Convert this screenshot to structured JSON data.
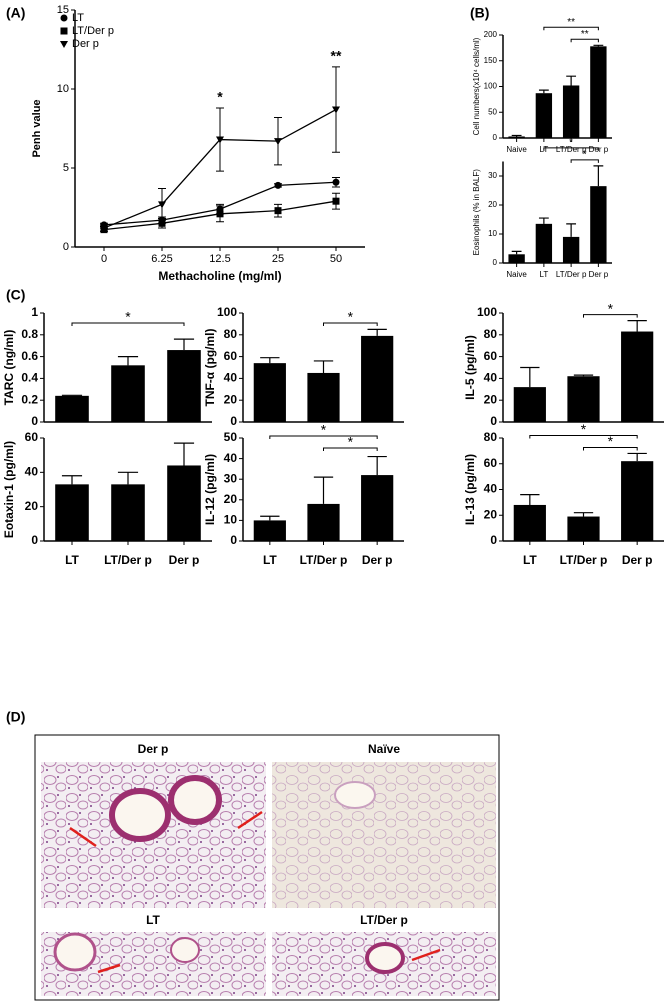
{
  "panel_labels": [
    "(A)",
    "(B)",
    "(C)",
    "(D)"
  ],
  "images": [
    {
      "title": "Der p"
    },
    {
      "title": "Naïve"
    },
    {
      "title": "LT"
    },
    {
      "title": "LT/Der p"
    }
  ],
  "chart_data": [
    {
      "type": "line",
      "x_label": "Methacholine (mg/ml)",
      "y_label": "Penh value",
      "categories": [
        "0",
        "6.25",
        "12.5",
        "25",
        "50"
      ],
      "ylim": [
        0,
        15
      ],
      "yticks": [
        0,
        5,
        10,
        15
      ],
      "series": [
        {
          "name": "LT",
          "color": "#000000",
          "marker": "circle",
          "values": [
            1.4,
            1.7,
            2.4,
            3.9,
            4.1
          ],
          "errors": [
            0.1,
            0.2,
            0.3,
            0.1,
            0.3
          ]
        },
        {
          "name": "LT/Der p",
          "color": "#000000",
          "marker": "square",
          "values": [
            1.1,
            1.5,
            2.1,
            2.3,
            2.9
          ],
          "errors": [
            0.1,
            0.3,
            0.5,
            0.4,
            0.5
          ]
        },
        {
          "name": "Der p",
          "color": "#000000",
          "marker": "triangle-down",
          "values": [
            1.2,
            2.7,
            6.8,
            6.7,
            8.7
          ],
          "errors": [
            0.2,
            1.0,
            2.0,
            1.5,
            2.7
          ]
        }
      ],
      "annotations": [
        {
          "text": "*",
          "x": "12.5"
        },
        {
          "text": "**",
          "x": "50"
        }
      ]
    },
    {
      "type": "bar",
      "y_label": "Cell numbers(x10⁴ cells/ml)",
      "categories": [
        "Naive",
        "LT",
        "LT/Der p",
        "Der p"
      ],
      "values": [
        3,
        87,
        102,
        178
      ],
      "errors": [
        2,
        6,
        18,
        2
      ],
      "color": "#000000",
      "ylim": [
        0,
        200
      ],
      "yticks": [
        0,
        50,
        100,
        150,
        200
      ],
      "brackets": [
        {
          "pair": [
            2,
            3
          ],
          "label": "**"
        },
        {
          "pair": [
            1,
            3
          ],
          "label": "**"
        }
      ]
    },
    {
      "type": "bar",
      "y_label": "Eosinophils (% in BALF)",
      "categories": [
        "Naive",
        "LT",
        "LT/Der p",
        "Der p"
      ],
      "values": [
        3,
        13.5,
        9,
        26.5
      ],
      "errors": [
        1,
        2,
        4.5,
        7
      ],
      "color": "#000000",
      "ylim": [
        0,
        35
      ],
      "yticks": [
        0,
        10,
        20,
        30
      ],
      "brackets": [
        {
          "pair": [
            2,
            3
          ],
          "label": "*"
        },
        {
          "pair": [
            1,
            3
          ],
          "label": "*"
        }
      ]
    },
    {
      "type": "bar",
      "y_label": "TARC (ng/ml)",
      "values": [
        0.24,
        0.52,
        0.66
      ],
      "errors": [
        0.005,
        0.08,
        0.1
      ],
      "color": "#000000",
      "ylim": [
        0,
        1
      ],
      "yticks": [
        0,
        0.2,
        0.4,
        0.6,
        0.8,
        1
      ],
      "brackets": [
        {
          "pair": [
            0,
            2
          ],
          "label": "*"
        }
      ]
    },
    {
      "type": "bar",
      "y_label": "TNF-α (pg/ml)",
      "values": [
        54,
        45,
        79
      ],
      "errors": [
        5,
        11,
        6
      ],
      "color": "#000000",
      "ylim": [
        0,
        100
      ],
      "yticks": [
        0,
        20,
        40,
        60,
        80,
        100
      ],
      "brackets": [
        {
          "pair": [
            1,
            2
          ],
          "label": "*"
        }
      ]
    },
    {
      "type": "bar",
      "y_label": "IL-5 (pg/ml)",
      "values": [
        32,
        42,
        83
      ],
      "errors": [
        18,
        1,
        10
      ],
      "color": "#000000",
      "ylim": [
        0,
        100
      ],
      "yticks": [
        0,
        20,
        40,
        60,
        80,
        100
      ],
      "brackets": [
        {
          "pair": [
            1,
            2
          ],
          "label": "*"
        }
      ]
    },
    {
      "type": "bar",
      "y_label": "Eotaxin-1 (pg/ml)",
      "categories": [
        "LT",
        "LT/Der p",
        "Der p"
      ],
      "values": [
        33,
        33,
        44
      ],
      "errors": [
        5,
        7,
        13
      ],
      "color": "#000000",
      "ylim": [
        0,
        60
      ],
      "yticks": [
        0,
        20,
        40,
        60
      ]
    },
    {
      "type": "bar",
      "y_label": "IL-12 (pg/ml)",
      "categories": [
        "LT",
        "LT/Der p",
        "Der p"
      ],
      "values": [
        10,
        18,
        32
      ],
      "errors": [
        2,
        13,
        9
      ],
      "color": "#000000",
      "ylim": [
        0,
        50
      ],
      "yticks": [
        0,
        10,
        20,
        30,
        40,
        50
      ],
      "brackets": [
        {
          "pair": [
            1,
            2
          ],
          "label": "*"
        },
        {
          "pair": [
            0,
            2
          ],
          "label": "*"
        }
      ]
    },
    {
      "type": "bar",
      "y_label": "IL-13 (pg/ml)",
      "categories": [
        "LT",
        "LT/Der p",
        "Der p"
      ],
      "values": [
        28,
        19,
        62
      ],
      "errors": [
        8,
        3,
        6
      ],
      "color": "#000000",
      "ylim": [
        0,
        80
      ],
      "yticks": [
        0,
        20,
        40,
        60,
        80
      ],
      "brackets": [
        {
          "pair": [
            1,
            2
          ],
          "label": "*"
        },
        {
          "pair": [
            0,
            2
          ],
          "label": "*"
        }
      ]
    }
  ]
}
